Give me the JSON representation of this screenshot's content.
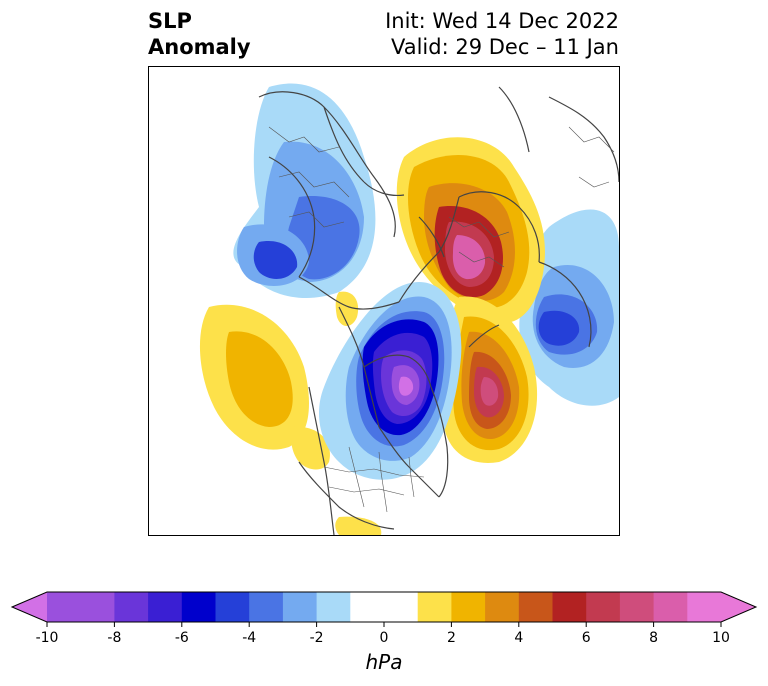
{
  "header": {
    "title_line1": "SLP",
    "title_line2": "Anomaly",
    "init_text": "Init: Wed 14 Dec 2022",
    "valid_text": "Valid: 29 Dec – 11 Jan"
  },
  "map": {
    "projection": "polar stereographic (North America / Arctic)",
    "field": "sea level pressure anomaly",
    "features": [
      {
        "name": "high-arctic",
        "kind": "high",
        "peak_hpa": 9
      },
      {
        "name": "high-north-atlantic",
        "kind": "high",
        "peak_hpa": 8
      },
      {
        "name": "low-hudson-bay",
        "kind": "low",
        "peak_hpa": -10
      },
      {
        "name": "low-siberia",
        "kind": "low",
        "peak_hpa": -6
      },
      {
        "name": "low-scandinavia",
        "kind": "low",
        "peak_hpa": -6
      },
      {
        "name": "high-northeast-pacific",
        "kind": "high",
        "peak_hpa": 3
      }
    ]
  },
  "colorbar": {
    "unit_label": "hPa",
    "extend": "both",
    "bins": [
      {
        "from": -10,
        "to": -9,
        "color": "#9a50dd"
      },
      {
        "from": -9,
        "to": -8,
        "color": "#9a50dd"
      },
      {
        "from": -8,
        "to": -7,
        "color": "#6a35d9"
      },
      {
        "from": -7,
        "to": -6,
        "color": "#3a1fd3"
      },
      {
        "from": -6,
        "to": -5,
        "color": "#0000cc"
      },
      {
        "from": -5,
        "to": -4,
        "color": "#2540d8"
      },
      {
        "from": -4,
        "to": -3,
        "color": "#4a74e4"
      },
      {
        "from": -3,
        "to": -2,
        "color": "#74aaf0"
      },
      {
        "from": -2,
        "to": -1,
        "color": "#a9daf8"
      },
      {
        "from": -1,
        "to": 1,
        "color": "#ffffff"
      },
      {
        "from": 1,
        "to": 2,
        "color": "#fde14a"
      },
      {
        "from": 2,
        "to": 3,
        "color": "#f0b400"
      },
      {
        "from": 3,
        "to": 4,
        "color": "#de8a10"
      },
      {
        "from": 4,
        "to": 5,
        "color": "#c8561a"
      },
      {
        "from": 5,
        "to": 6,
        "color": "#b22222"
      },
      {
        "from": 6,
        "to": 7,
        "color": "#c23a50"
      },
      {
        "from": 7,
        "to": 8,
        "color": "#cf4d7c"
      },
      {
        "from": 8,
        "to": 9,
        "color": "#da5eab"
      },
      {
        "from": 9,
        "to": 10,
        "color": "#e878d8"
      }
    ],
    "low_extend_color": "#d270e6",
    "high_extend_color": "#e878d8",
    "ticks": [
      -10,
      -8,
      -6,
      -4,
      -2,
      0,
      2,
      4,
      6,
      8,
      10
    ],
    "vmin": -10,
    "vmax": 10
  }
}
